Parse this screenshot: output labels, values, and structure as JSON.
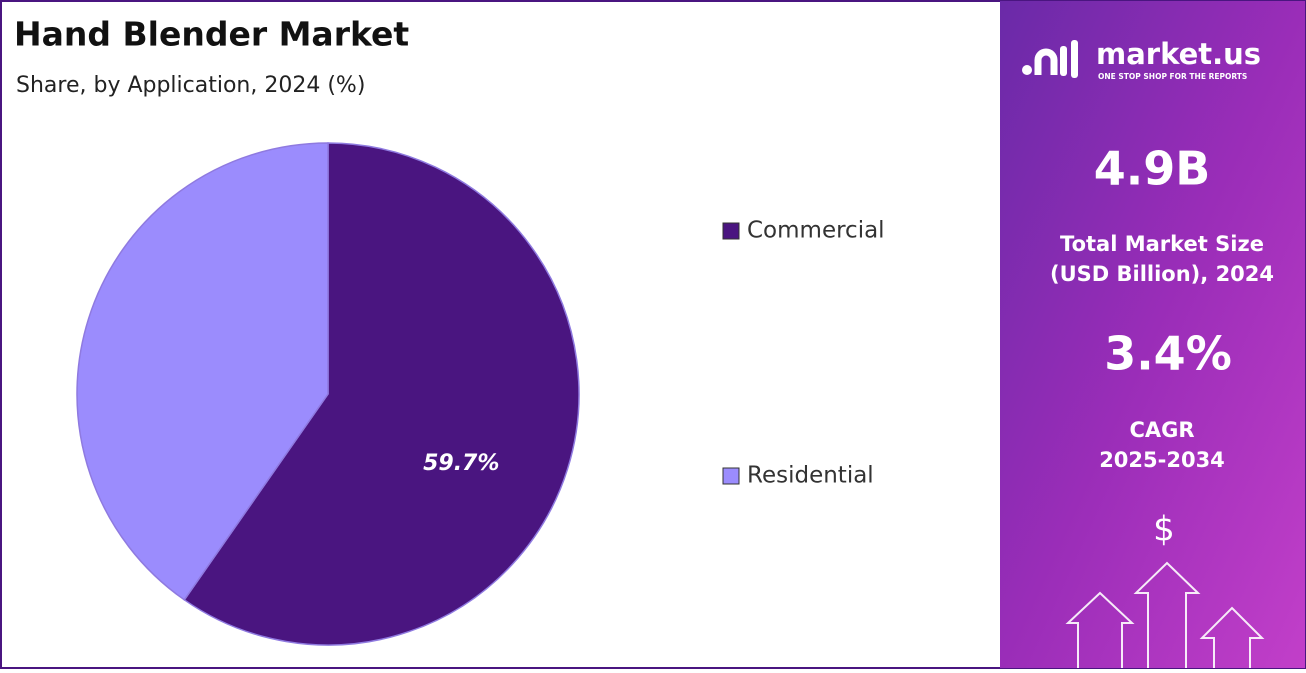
{
  "chart_data": {
    "type": "pie",
    "title": "Hand Blender Market",
    "subtitle": "Share, by Application, 2024 (%)",
    "categories": [
      "Commercial",
      "Residential"
    ],
    "values": [
      59.7,
      40.3
    ],
    "value_labels": [
      "59.7%",
      null
    ],
    "colors": [
      "#4a1580",
      "#9b8cfd"
    ]
  },
  "panel": {
    "brand": "market.us",
    "tagline": "ONE STOP SHOP FOR THE REPORTS",
    "market_size": "4.9B",
    "market_size_label": [
      "Total Market Size",
      "(USD Billion), 2024"
    ],
    "cagr": "3.4%",
    "cagr_label": [
      "CAGR",
      "2025-2034"
    ],
    "currency_icon": "$"
  }
}
